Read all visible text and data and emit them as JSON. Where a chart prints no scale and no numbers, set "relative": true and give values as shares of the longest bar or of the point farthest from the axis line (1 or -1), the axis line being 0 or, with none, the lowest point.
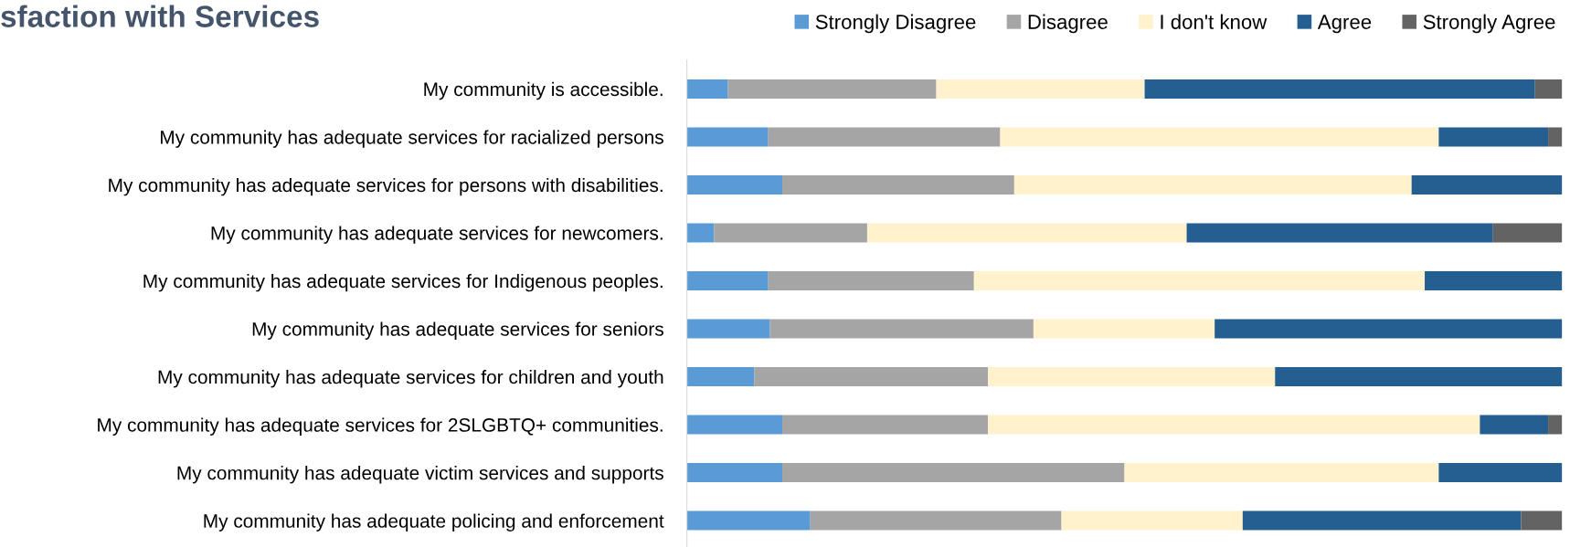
{
  "chart_data": {
    "type": "bar",
    "title": "sfaction with Services",
    "orientation": "horizontal",
    "stacked": true,
    "relative": true,
    "legend": "top right",
    "grid": false,
    "categories": [
      "My community is accessible.",
      "My community has adequate services for racialized persons",
      "My community has adequate services for persons with disabilities.",
      "My community has adequate services for newcomers.",
      "My community has adequate services for Indigenous peoples.",
      "My community has adequate services for seniors",
      "My community has adequate services for children and youth",
      "My community has adequate services for 2SLGBTQ+ communities.",
      "My community has adequate victim services and supports",
      "My community has adequate policing and enforcement"
    ],
    "series": [
      {
        "name": "Strongly Disagree",
        "color": "#5b9bd5",
        "values": [
          0.047,
          0.093,
          0.109,
          0.031,
          0.093,
          0.095,
          0.077,
          0.109,
          0.109,
          0.141
        ]
      },
      {
        "name": "Disagree",
        "color": "#a5a5a5",
        "values": [
          0.238,
          0.265,
          0.265,
          0.175,
          0.235,
          0.301,
          0.267,
          0.235,
          0.391,
          0.287
        ]
      },
      {
        "name": "I don't know",
        "color": "#fff2cc",
        "values": [
          0.238,
          0.501,
          0.454,
          0.365,
          0.515,
          0.207,
          0.328,
          0.562,
          0.359,
          0.207
        ]
      },
      {
        "name": "Agree",
        "color": "#255e91",
        "values": [
          0.446,
          0.125,
          0.172,
          0.35,
          0.157,
          0.397,
          0.328,
          0.078,
          0.141,
          0.318
        ]
      },
      {
        "name": "Strongly Agree",
        "color": "#636363",
        "values": [
          0.031,
          0.016,
          0,
          0.079,
          0,
          0,
          0,
          0.016,
          0,
          0.047
        ]
      }
    ]
  }
}
